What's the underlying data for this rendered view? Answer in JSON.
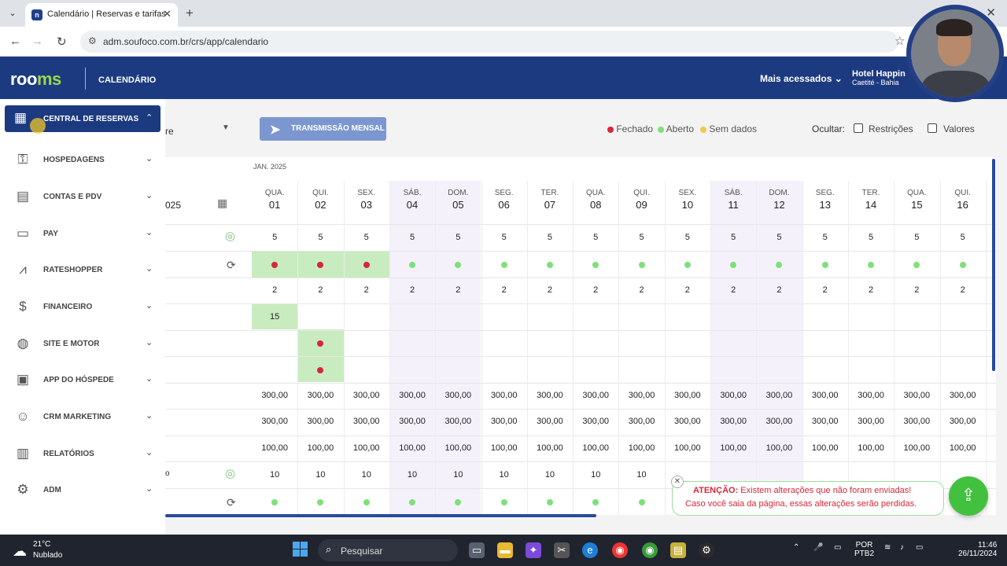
{
  "browser": {
    "tab_title": "Calendário | Reservas e tarifas",
    "url": "adm.soufoco.com.br/crs/app/calendario",
    "close_glyph": "✕",
    "new_tab_glyph": "+"
  },
  "header": {
    "logo_prefix": "roo",
    "logo_suffix": "ms",
    "page_label": "CALENDÁRIO",
    "mais_acessados": "Mais acessados",
    "hotel_name": "Hotel Happin",
    "hotel_city": "Caetité - Bahia"
  },
  "sidebar": {
    "active": {
      "label": "CENTRAL DE RESERVAS",
      "icon": "calendar-icon"
    },
    "items": [
      {
        "label": "HOSPEDAGENS",
        "icon": "key-icon"
      },
      {
        "label": "CONTAS E PDV",
        "icon": "receipt-icon"
      },
      {
        "label": "PAY",
        "icon": "card-icon"
      },
      {
        "label": "RATESHOPPER",
        "icon": "chart-icon"
      },
      {
        "label": "FINANCEIRO",
        "icon": "money-icon"
      },
      {
        "label": "SITE E MOTOR",
        "icon": "globe-icon"
      },
      {
        "label": "APP DO HÓSPEDE",
        "icon": "qr-icon"
      },
      {
        "label": "CRM MARKETING",
        "icon": "smile-icon"
      },
      {
        "label": "RELATÓRIOS",
        "icon": "report-icon"
      },
      {
        "label": "ADM",
        "icon": "admin-icon"
      }
    ]
  },
  "toolbar": {
    "select_fragment": "re",
    "transmissao": "TRANSMISSÃO MENSAL",
    "legend": [
      {
        "label": "Fechado",
        "color": "#d6283a"
      },
      {
        "label": "Aberto",
        "color": "#7fe07a"
      },
      {
        "label": "Sem dados",
        "color": "#f2c94c"
      }
    ],
    "ocultar": "Ocultar:",
    "restricoes": "Restrições",
    "valores": "Valores"
  },
  "grid": {
    "month": "JAN. 2025",
    "date_fragment": "025",
    "days": [
      {
        "dow": "QUA.",
        "d": "01"
      },
      {
        "dow": "QUI.",
        "d": "02"
      },
      {
        "dow": "SEX.",
        "d": "03"
      },
      {
        "dow": "SÁB.",
        "d": "04"
      },
      {
        "dow": "DOM.",
        "d": "05"
      },
      {
        "dow": "SEG.",
        "d": "06"
      },
      {
        "dow": "TER.",
        "d": "07"
      },
      {
        "dow": "QUA.",
        "d": "08"
      },
      {
        "dow": "QUI.",
        "d": "09"
      },
      {
        "dow": "SEX.",
        "d": "10"
      },
      {
        "dow": "SÁB.",
        "d": "11"
      },
      {
        "dow": "DOM.",
        "d": "12"
      },
      {
        "dow": "SEG.",
        "d": "13"
      },
      {
        "dow": "TER.",
        "d": "14"
      },
      {
        "dow": "QUA.",
        "d": "15"
      },
      {
        "dow": "QUI.",
        "d": "16"
      }
    ],
    "row_avail": "5",
    "row_min": "2",
    "row_min_extra": "15",
    "price_1": "300,00",
    "price_2": "300,00",
    "price_3": "100,00",
    "row_avail2": "10",
    "row_label_fragment": "o",
    "closed_days_status": [
      true,
      true,
      true,
      false,
      false,
      false,
      false,
      false,
      false,
      false,
      false,
      false,
      false,
      false,
      false,
      false
    ]
  },
  "toast": {
    "title": "ATENÇÃO:",
    "line1": "Existem alterações que não foram enviadas!",
    "line2": "Caso você saia da página, essas alterações serão perdidas."
  },
  "taskbar": {
    "temp": "21°C",
    "weather": "Nublado",
    "search": "Pesquisar",
    "lang1": "POR",
    "lang2": "PTB2",
    "time": "11:46",
    "date": "26/11/2024"
  }
}
